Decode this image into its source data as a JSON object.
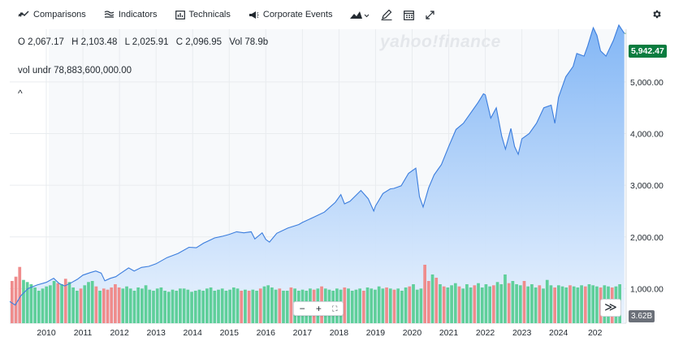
{
  "toolbar": {
    "comparisons": "Comparisons",
    "indicators": "Indicators",
    "technicals": "Technicals",
    "corporate_events": "Corporate Events",
    "chart_type_icon": "mountain-chart-icon",
    "draw_icon": "pencil-icon",
    "calendar_icon": "calendar-icon",
    "fullscreen_icon": "expand-icon",
    "settings_icon": "gear-icon"
  },
  "ohlc": {
    "open": "O 2,067.17",
    "high": "H 2,103.48",
    "low": "L 2,025.91",
    "close": "C 2,096.95",
    "vol": "Vol 78.9b"
  },
  "vol_undr": "vol undr  78,883,600,000.00",
  "collapse_glyph": "^",
  "watermark": "yahoo!finance",
  "zoom": {
    "minus": "−",
    "plus": "+",
    "reset": "⛶"
  },
  "scroll_right": "≫",
  "last_price_label": "5,942.47",
  "last_volume_label": "3.62B",
  "colors": {
    "price_line": "#3b7ddd",
    "area_top": "#7db3f5",
    "area_bottom": "#eaf3fe",
    "vol_up": "#5fcf9a",
    "vol_down": "#ef8c8c",
    "grid": "#e9ecef",
    "last_price_bg": "#0a7c3f"
  },
  "chart_data": {
    "type": "area",
    "x_ticks": [
      "2010",
      "2011",
      "2012",
      "2013",
      "2014",
      "2015",
      "2016",
      "2017",
      "2018",
      "2019",
      "2020",
      "2021",
      "2022",
      "2023",
      "2024",
      "202"
    ],
    "y_ticks": [
      "1,000.00",
      "2,000.00",
      "3,000.00",
      "4,000.00",
      "5,000.00"
    ],
    "ylim": [
      330,
      6020
    ],
    "xlim": [
      2009.0,
      2025.85
    ],
    "series": [
      {
        "x": [
          2009.0,
          2009.15,
          2009.3,
          2009.5,
          2009.75,
          2010.0,
          2010.2,
          2010.35,
          2010.5,
          2010.7,
          2010.85,
          2011.0,
          2011.2,
          2011.35,
          2011.5,
          2011.6,
          2011.75,
          2011.9,
          2012.0,
          2012.25,
          2012.4,
          2012.6,
          2012.8,
          2013.0,
          2013.3,
          2013.6,
          2013.9,
          2014.1,
          2014.3,
          2014.6,
          2014.8,
          2015.0,
          2015.2,
          2015.4,
          2015.6,
          2015.7,
          2015.9,
          2016.0,
          2016.1,
          2016.3,
          2016.6,
          2016.9,
          2017.0,
          2017.3,
          2017.6,
          2017.9,
          2018.05,
          2018.15,
          2018.3,
          2018.6,
          2018.8,
          2018.95,
          2019.0,
          2019.2,
          2019.4,
          2019.5,
          2019.7,
          2019.9,
          2020.1,
          2020.2,
          2020.3,
          2020.45,
          2020.6,
          2020.7,
          2020.8,
          2021.0,
          2021.2,
          2021.4,
          2021.6,
          2021.8,
          2021.95,
          2022.0,
          2022.15,
          2022.3,
          2022.45,
          2022.55,
          2022.7,
          2022.8,
          2022.9,
          2023.0,
          2023.2,
          2023.4,
          2023.6,
          2023.8,
          2023.9,
          2024.0,
          2024.2,
          2024.4,
          2024.5,
          2024.7,
          2024.8,
          2024.95,
          2025.05,
          2025.15,
          2025.3,
          2025.5,
          2025.65,
          2025.8
        ],
        "values": [
          750,
          680,
          860,
          1000,
          1070,
          1120,
          1200,
          1100,
          1050,
          1120,
          1180,
          1260,
          1310,
          1340,
          1300,
          1150,
          1200,
          1230,
          1280,
          1400,
          1340,
          1410,
          1430,
          1480,
          1600,
          1680,
          1800,
          1790,
          1880,
          1980,
          2010,
          2050,
          2100,
          2080,
          2100,
          1960,
          2080,
          1950,
          1900,
          2070,
          2170,
          2240,
          2280,
          2380,
          2480,
          2670,
          2820,
          2640,
          2690,
          2900,
          2740,
          2500,
          2600,
          2840,
          2930,
          2940,
          2990,
          3230,
          3330,
          2780,
          2580,
          2950,
          3200,
          3300,
          3400,
          3750,
          4080,
          4200,
          4400,
          4600,
          4770,
          4750,
          4300,
          4500,
          3950,
          3700,
          4100,
          3750,
          3600,
          3900,
          4000,
          4200,
          4500,
          4550,
          4200,
          4700,
          5100,
          5300,
          5550,
          5500,
          5700,
          6050,
          5900,
          5600,
          5500,
          5800,
          6100,
          5940
        ],
        "name": ""
      }
    ],
    "volume_series": {
      "count": 160,
      "values_billions": [
        3.9,
        4.3,
        5.2,
        4.0,
        3.8,
        3.6,
        3.3,
        3.0,
        3.2,
        3.4,
        3.5,
        3.9,
        3.7,
        3.6,
        4.1,
        3.8,
        3.3,
        3.0,
        3.2,
        3.5,
        3.8,
        3.9,
        3.4,
        3.0,
        3.2,
        3.1,
        3.3,
        3.6,
        3.3,
        3.2,
        3.4,
        3.2,
        3.0,
        3.3,
        3.2,
        3.5,
        3.1,
        3.0,
        3.2,
        3.3,
        3.0,
        2.9,
        3.1,
        3.0,
        3.2,
        3.2,
        3.1,
        2.9,
        3.0,
        3.1,
        3.0,
        3.2,
        3.3,
        3.0,
        3.1,
        3.2,
        3.0,
        3.1,
        3.3,
        3.2,
        3.0,
        3.1,
        3.0,
        3.1,
        3.0,
        3.2,
        3.4,
        3.5,
        3.3,
        3.1,
        3.2,
        3.0,
        3.0,
        3.3,
        3.2,
        3.0,
        3.1,
        3.0,
        3.2,
        3.1,
        3.2,
        3.4,
        3.2,
        3.1,
        3.0,
        3.2,
        3.1,
        3.3,
        3.2,
        3.0,
        3.1,
        3.2,
        3.0,
        3.3,
        3.2,
        3.1,
        3.4,
        3.2,
        3.3,
        3.2,
        3.1,
        3.2,
        3.0,
        3.3,
        3.4,
        3.6,
        3.1,
        3.2,
        5.4,
        3.9,
        4.5,
        4.2,
        3.6,
        3.4,
        3.3,
        3.5,
        3.7,
        3.4,
        3.2,
        3.6,
        3.3,
        3.5,
        3.7,
        3.3,
        3.6,
        3.4,
        3.5,
        3.8,
        3.6,
        4.5,
        3.7,
        3.9,
        3.6,
        3.5,
        3.9,
        3.4,
        3.6,
        3.3,
        3.5,
        3.2,
        4.0,
        3.5,
        3.3,
        3.5,
        3.4,
        3.3,
        3.5,
        3.4,
        3.3,
        3.5,
        3.4,
        3.6,
        3.5,
        3.4,
        3.3,
        3.5,
        3.4,
        3.3,
        3.4,
        3.6
      ],
      "down_indices": [
        0,
        1,
        2,
        12,
        14,
        18,
        22,
        24,
        25,
        26,
        27,
        28,
        60,
        62,
        65,
        70,
        73,
        79,
        81,
        87,
        92,
        98,
        100,
        104,
        108,
        109,
        111,
        113,
        117,
        121,
        126,
        130,
        134,
        138,
        142,
        146,
        150,
        154,
        157
      ],
      "last_value": "3.62B"
    },
    "title": "",
    "xlabel": "",
    "ylabel": "",
    "grid": true,
    "legend": "none"
  }
}
